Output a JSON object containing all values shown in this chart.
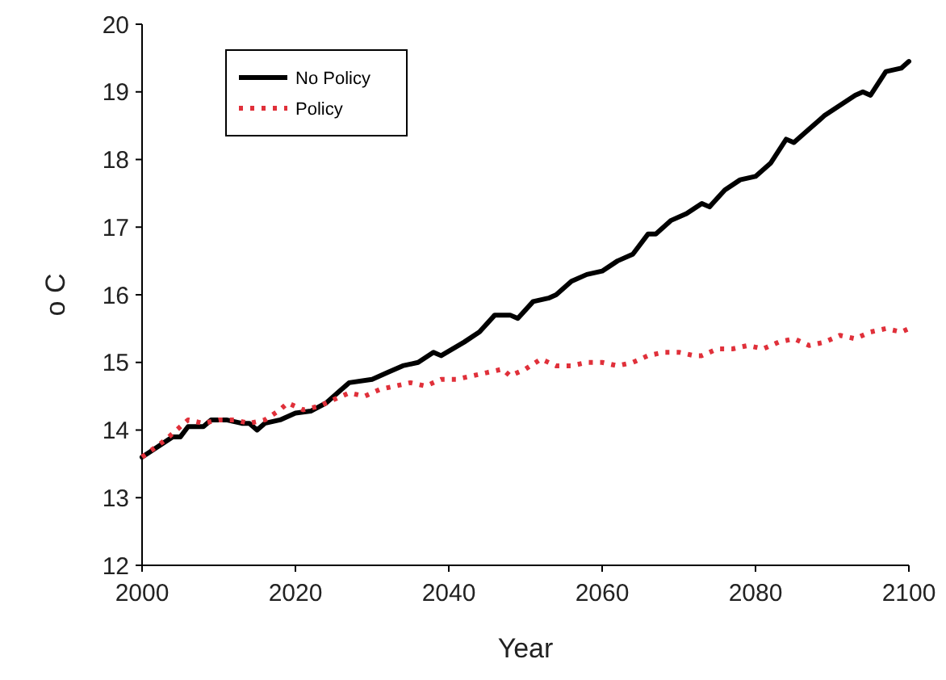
{
  "chart_data": {
    "type": "line",
    "xlabel": "Year",
    "ylabel": "o C",
    "xlim": [
      2000,
      2100
    ],
    "xticks": [
      2000,
      2020,
      2040,
      2060,
      2080,
      2100
    ],
    "ylim": [
      12,
      20
    ],
    "yticks": [
      12,
      13,
      14,
      15,
      16,
      17,
      18,
      19,
      20
    ],
    "grid": false,
    "legend": "top left",
    "marker": "none",
    "series": [
      {
        "name": "No Policy",
        "color": "#000000",
        "line_style": "solid",
        "x": [
          2000,
          2002,
          2004,
          2005,
          2006,
          2008,
          2009,
          2011,
          2013,
          2014,
          2015,
          2016,
          2018,
          2020,
          2022,
          2024,
          2026,
          2027,
          2030,
          2032,
          2034,
          2036,
          2038,
          2039,
          2042,
          2044,
          2046,
          2048,
          2049,
          2051,
          2053,
          2054,
          2056,
          2058,
          2060,
          2062,
          2064,
          2066,
          2067,
          2069,
          2071,
          2073,
          2074,
          2076,
          2078,
          2080,
          2082,
          2084,
          2085,
          2087,
          2089,
          2091,
          2093,
          2094,
          2095,
          2097,
          2099,
          2100
        ],
        "values": [
          13.6,
          13.75,
          13.9,
          13.9,
          14.05,
          14.05,
          14.15,
          14.15,
          14.1,
          14.1,
          14.0,
          14.1,
          14.15,
          14.25,
          14.28,
          14.4,
          14.6,
          14.7,
          14.75,
          14.85,
          14.95,
          15.0,
          15.15,
          15.1,
          15.3,
          15.45,
          15.7,
          15.7,
          15.65,
          15.9,
          15.95,
          16.0,
          16.2,
          16.3,
          16.35,
          16.5,
          16.6,
          16.9,
          16.9,
          17.1,
          17.2,
          17.35,
          17.3,
          17.55,
          17.7,
          17.75,
          17.95,
          18.3,
          18.25,
          18.45,
          18.65,
          18.8,
          18.95,
          19.0,
          18.95,
          19.3,
          19.35,
          19.45
        ]
      },
      {
        "name": "Policy",
        "color": "#e0303a",
        "line_style": "dotted",
        "x": [
          2000,
          2003,
          2006,
          2008,
          2010,
          2012,
          2014,
          2016,
          2018,
          2019,
          2021,
          2023,
          2025,
          2027,
          2029,
          2031,
          2033,
          2035,
          2037,
          2039,
          2041,
          2043,
          2045,
          2047,
          2048,
          2050,
          2052,
          2054,
          2056,
          2058,
          2060,
          2062,
          2064,
          2066,
          2068,
          2070,
          2072,
          2073,
          2075,
          2077,
          2079,
          2081,
          2083,
          2085,
          2087,
          2089,
          2091,
          2093,
          2095,
          2097,
          2099,
          2100
        ],
        "values": [
          13.6,
          13.85,
          14.15,
          14.1,
          14.15,
          14.15,
          14.1,
          14.15,
          14.3,
          14.4,
          14.3,
          14.35,
          14.45,
          14.55,
          14.5,
          14.6,
          14.65,
          14.7,
          14.65,
          14.75,
          14.75,
          14.8,
          14.85,
          14.9,
          14.8,
          14.9,
          15.05,
          14.95,
          14.95,
          15.0,
          15.0,
          14.95,
          15.0,
          15.1,
          15.15,
          15.15,
          15.1,
          15.1,
          15.2,
          15.2,
          15.25,
          15.2,
          15.3,
          15.35,
          15.25,
          15.3,
          15.4,
          15.35,
          15.45,
          15.5,
          15.45,
          15.5
        ]
      }
    ]
  }
}
